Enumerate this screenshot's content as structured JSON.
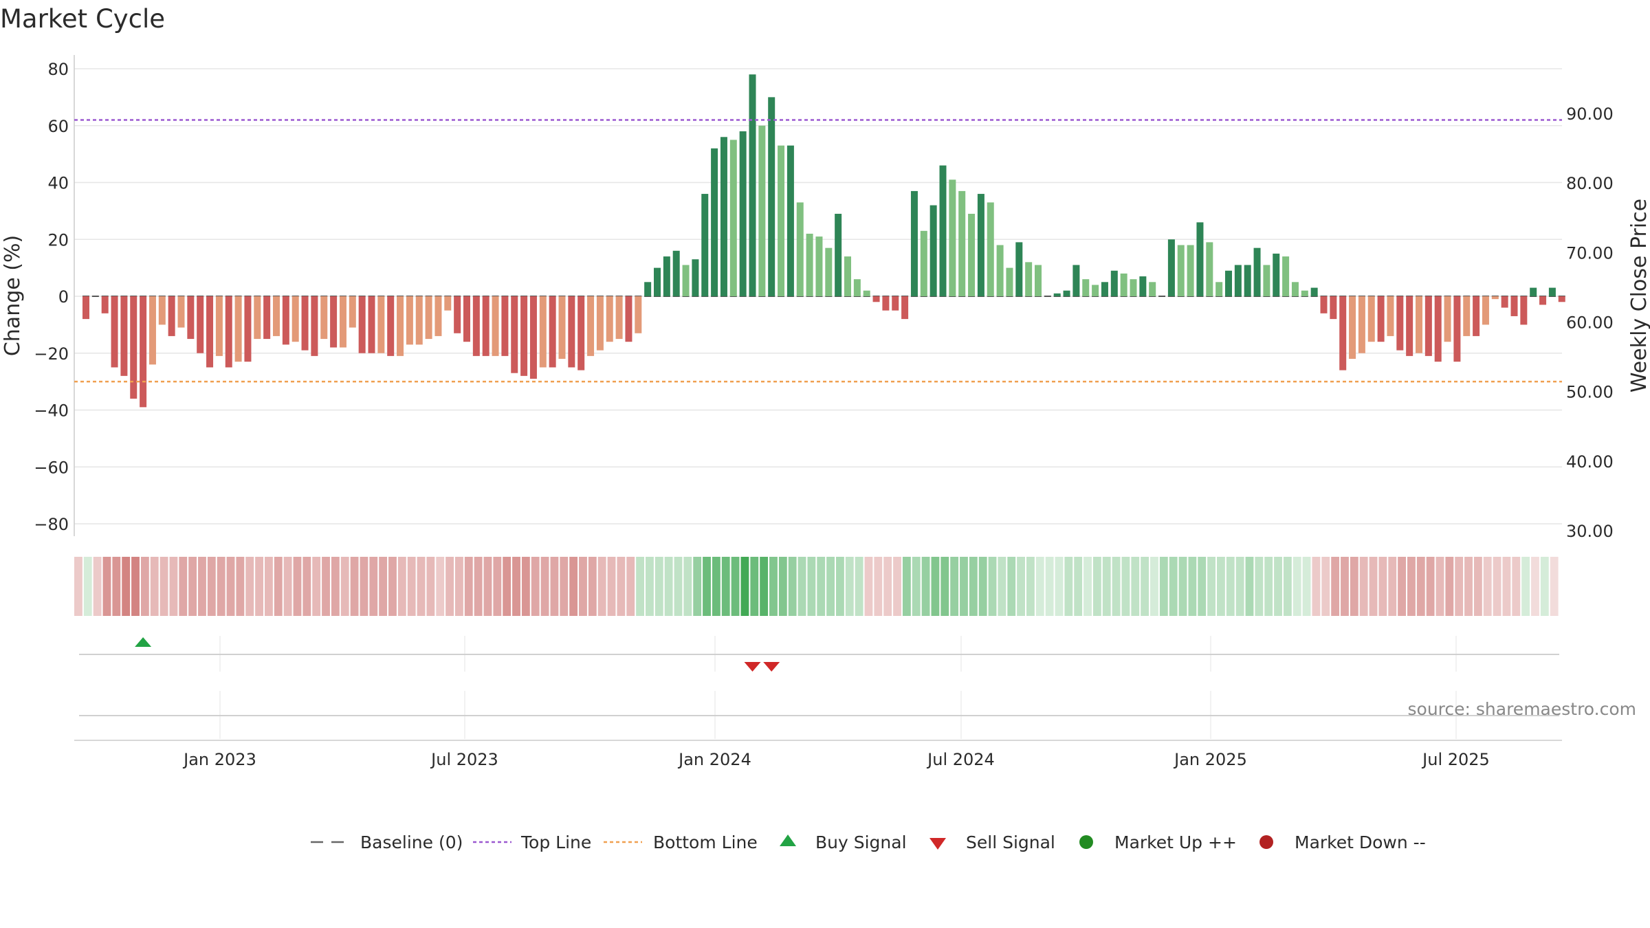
{
  "chart_data": {
    "type": "bar",
    "title": "Market Cycle",
    "ylabel": "Change (%)",
    "y2label": "Weekly Close Price",
    "ylim": [
      -80,
      80
    ],
    "y2lim": [
      30,
      90
    ],
    "yticks": [
      "80",
      "60",
      "40",
      "20",
      "0",
      "−20",
      "−40",
      "−60",
      "−80"
    ],
    "y2ticks": [
      "90.00",
      "80.00",
      "70.00",
      "60.00",
      "50.00",
      "40.00",
      "30.00"
    ],
    "xticks": [
      "Jan 2023",
      "Jul 2023",
      "Jan 2024",
      "Jul 2024",
      "Jan 2025",
      "Jul 2025"
    ],
    "top_line": 62,
    "bottom_line": -30,
    "grid": true,
    "source": "source: sharemaestro.com",
    "colors": {
      "up_strong": "#2e8556",
      "up_weak": "#80c080",
      "down_strong": "#cc5a5a",
      "down_weak": "#e39a78",
      "top_line": "#9b59d0",
      "bottom_line": "#f0a050",
      "buy": "#22a344",
      "sell": "#d02828",
      "market_up": "#228b22",
      "market_down": "#b22222"
    },
    "values": [
      -8,
      0,
      -6,
      -25,
      -28,
      -36,
      -39,
      -24,
      -10,
      -14,
      -11,
      -15,
      -20,
      -25,
      -21,
      -25,
      -23,
      -23,
      -15,
      -15,
      -14,
      -17,
      -16,
      -19,
      -21,
      -15,
      -18,
      -18,
      -11,
      -20,
      -20,
      -20,
      -21,
      -21,
      -17,
      -17,
      -15,
      -14,
      -5,
      -13,
      -16,
      -21,
      -21,
      -21,
      -21,
      -27,
      -28,
      -29,
      -25,
      -25,
      -22,
      -25,
      -26,
      -21,
      -19,
      -16,
      -15,
      -16,
      -13,
      5,
      10,
      14,
      16,
      11,
      13,
      36,
      52,
      56,
      55,
      58,
      78,
      60,
      70,
      53,
      53,
      33,
      22,
      21,
      17,
      29,
      14,
      6,
      2,
      -2,
      -5,
      -5,
      -8,
      37,
      23,
      32,
      46,
      41,
      37,
      29,
      36,
      33,
      18,
      10,
      19,
      12,
      11,
      0,
      1,
      2,
      11,
      6,
      4,
      5,
      9,
      8,
      6,
      7,
      5,
      0,
      20,
      18,
      18,
      26,
      19,
      5,
      9,
      11,
      11,
      17,
      11,
      15,
      14,
      5,
      2,
      3,
      -6,
      -8,
      -26,
      -22,
      -20,
      -16,
      -16,
      -14,
      -19,
      -21,
      -20,
      -21,
      -23,
      -16,
      -23,
      -14,
      -14,
      -10,
      -1,
      -4,
      -7,
      -10,
      3,
      -3,
      3,
      -2
    ],
    "strength": [
      1,
      0,
      1,
      1,
      1,
      1,
      1,
      0,
      0,
      1,
      0,
      1,
      1,
      1,
      0,
      1,
      0,
      1,
      0,
      1,
      0,
      1,
      0,
      1,
      1,
      0,
      1,
      0,
      0,
      1,
      1,
      0,
      1,
      0,
      0,
      0,
      0,
      0,
      0,
      1,
      1,
      1,
      1,
      0,
      1,
      1,
      1,
      1,
      0,
      1,
      0,
      1,
      1,
      0,
      0,
      0,
      0,
      1,
      0,
      1,
      1,
      1,
      1,
      0,
      1,
      1,
      1,
      1,
      0,
      1,
      1,
      0,
      1,
      0,
      1,
      0,
      0,
      0,
      0,
      1,
      0,
      0,
      0,
      1,
      1,
      1,
      1,
      1,
      0,
      1,
      1,
      0,
      0,
      0,
      1,
      0,
      0,
      0,
      1,
      0,
      0,
      0,
      1,
      1,
      1,
      0,
      0,
      1,
      1,
      0,
      0,
      1,
      0,
      0,
      1,
      0,
      0,
      1,
      0,
      0,
      1,
      1,
      1,
      1,
      0,
      1,
      0,
      0,
      0,
      1,
      1,
      1,
      1,
      0,
      0,
      0,
      1,
      0,
      1,
      1,
      0,
      1,
      1,
      0,
      1,
      0,
      1,
      0,
      0,
      1,
      1,
      1,
      1,
      1,
      1,
      1
    ],
    "band": [
      0.3,
      0.2,
      0.3,
      0.6,
      0.6,
      0.7,
      0.7,
      0.5,
      0.4,
      0.4,
      0.4,
      0.5,
      0.5,
      0.5,
      0.5,
      0.5,
      0.5,
      0.5,
      0.4,
      0.4,
      0.4,
      0.5,
      0.4,
      0.5,
      0.5,
      0.4,
      0.5,
      0.5,
      0.4,
      0.5,
      0.5,
      0.5,
      0.5,
      0.5,
      0.4,
      0.4,
      0.4,
      0.4,
      0.3,
      0.4,
      0.4,
      0.5,
      0.5,
      0.5,
      0.5,
      0.6,
      0.6,
      0.6,
      0.5,
      0.5,
      0.5,
      0.5,
      0.6,
      0.5,
      0.5,
      0.4,
      0.4,
      0.4,
      0.4,
      0.3,
      0.3,
      0.3,
      0.3,
      0.3,
      0.3,
      0.5,
      0.7,
      0.7,
      0.7,
      0.7,
      0.9,
      0.7,
      0.8,
      0.6,
      0.6,
      0.5,
      0.4,
      0.4,
      0.4,
      0.4,
      0.4,
      0.3,
      0.3,
      0.3,
      0.3,
      0.3,
      0.3,
      0.5,
      0.4,
      0.5,
      0.6,
      0.6,
      0.5,
      0.5,
      0.5,
      0.5,
      0.4,
      0.3,
      0.4,
      0.3,
      0.3,
      0.2,
      0.2,
      0.2,
      0.3,
      0.3,
      0.2,
      0.3,
      0.3,
      0.3,
      0.3,
      0.3,
      0.3,
      0.2,
      0.4,
      0.4,
      0.4,
      0.4,
      0.4,
      0.3,
      0.3,
      0.3,
      0.3,
      0.4,
      0.3,
      0.3,
      0.3,
      0.3,
      0.2,
      0.2,
      0.3,
      0.3,
      0.5,
      0.5,
      0.5,
      0.4,
      0.4,
      0.4,
      0.4,
      0.5,
      0.5,
      0.5,
      0.5,
      0.4,
      0.5,
      0.4,
      0.4,
      0.4,
      0.3,
      0.3,
      0.3,
      0.3,
      0.2,
      0.2,
      0.2,
      0.2
    ],
    "buy_signals": [
      6
    ],
    "sell_signals": [
      70,
      72
    ],
    "legend": [
      {
        "label": "Baseline (0)",
        "icon": "dash-gray"
      },
      {
        "label": "Top Line",
        "icon": "dot-purple"
      },
      {
        "label": "Bottom Line",
        "icon": "dot-orange"
      },
      {
        "label": "Buy Signal",
        "icon": "triangle-up-green"
      },
      {
        "label": "Sell Signal",
        "icon": "triangle-down-red"
      },
      {
        "label": "Market Up ++",
        "icon": "circle-green"
      },
      {
        "label": "Market Down --",
        "icon": "circle-red"
      }
    ]
  }
}
